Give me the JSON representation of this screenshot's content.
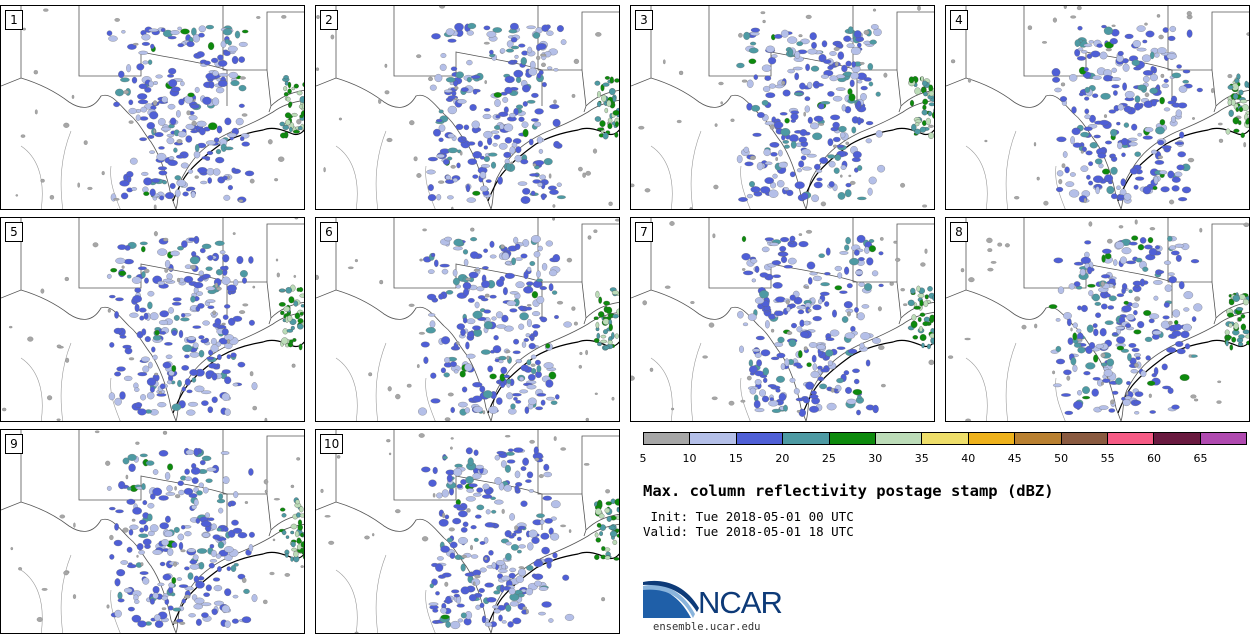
{
  "panels": [
    {
      "label": "1",
      "seed": 11,
      "conv": 0.62
    },
    {
      "label": "2",
      "seed": 23,
      "conv": 0.38
    },
    {
      "label": "3",
      "seed": 37,
      "conv": 0.52
    },
    {
      "label": "4",
      "seed": 41,
      "conv": 0.48
    },
    {
      "label": "5",
      "seed": 53,
      "conv": 0.45
    },
    {
      "label": "6",
      "seed": 67,
      "conv": 0.42
    },
    {
      "label": "7",
      "seed": 71,
      "conv": 0.4
    },
    {
      "label": "8",
      "seed": 83,
      "conv": 0.5
    },
    {
      "label": "9",
      "seed": 97,
      "conv": 0.44
    },
    {
      "label": "10",
      "seed": 101,
      "conv": 0.36
    }
  ],
  "colorbar": {
    "ticks": [
      "5",
      "10",
      "15",
      "20",
      "25",
      "30",
      "35",
      "40",
      "45",
      "50",
      "55",
      "60",
      "65"
    ],
    "colors": [
      "#a6a6a6",
      "#b4bfe8",
      "#4f5fd6",
      "#4d9aa3",
      "#0d8a0d",
      "#bcdcb8",
      "#eede6a",
      "#eeb21c",
      "#b98030",
      "#8a5a40",
      "#f65b85",
      "#6a1a40",
      "#b04ab0"
    ]
  },
  "title": "Max. column reflectivity postage stamp (dBZ)",
  "init_line": " Init: Tue 2018-05-01 00 UTC",
  "valid_line": "Valid: Tue 2018-05-01 18 UTC",
  "logo": {
    "text": "NCAR",
    "url": "ensemble.ucar.edu",
    "icon": "ncar-swoosh-icon"
  }
}
